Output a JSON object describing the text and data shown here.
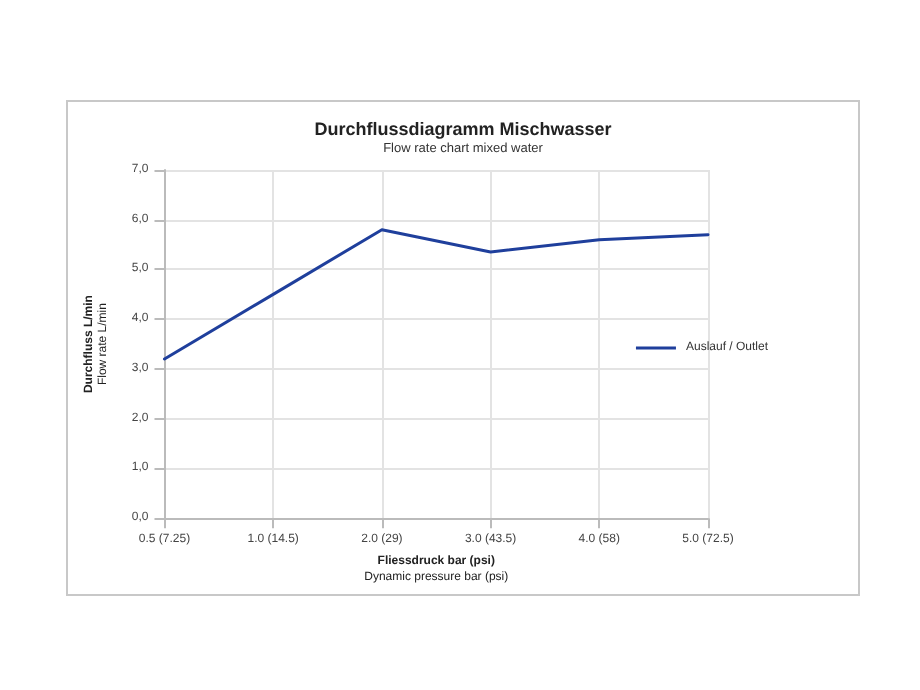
{
  "chart_data": {
    "type": "line",
    "title": "Durchflussdiagramm Mischwasser",
    "subtitle": "Flow rate chart mixed water",
    "xlabel": "Fliessdruck bar (psi)\nDynamic pressure bar (psi)",
    "ylabel": "Durchfluss L/min\nFlow rate L/min",
    "categories": [
      "0.5 (7.25)",
      "1.0 (14.5)",
      "2.0 (29)",
      "3.0 (43.5)",
      "4.0 (58)",
      "5.0 (72.5)"
    ],
    "series": [
      {
        "name": "Auslauf / Outlet",
        "color": "#1f3f9c",
        "values": [
          3.2,
          4.5,
          5.8,
          5.35,
          5.6,
          5.7
        ]
      }
    ],
    "ylim": [
      0,
      7
    ],
    "yticks": [
      {
        "value": 0,
        "label": "0,0"
      },
      {
        "value": 1,
        "label": "1,0"
      },
      {
        "value": 2,
        "label": "2,0"
      },
      {
        "value": 3,
        "label": "3,0"
      },
      {
        "value": 4,
        "label": "4,0"
      },
      {
        "value": 5,
        "label": "5,0"
      },
      {
        "value": 6,
        "label": "6,0"
      },
      {
        "value": 7,
        "label": "7,0"
      }
    ],
    "grid": true,
    "legend": "right",
    "marker": "none",
    "line_style": "solid"
  }
}
